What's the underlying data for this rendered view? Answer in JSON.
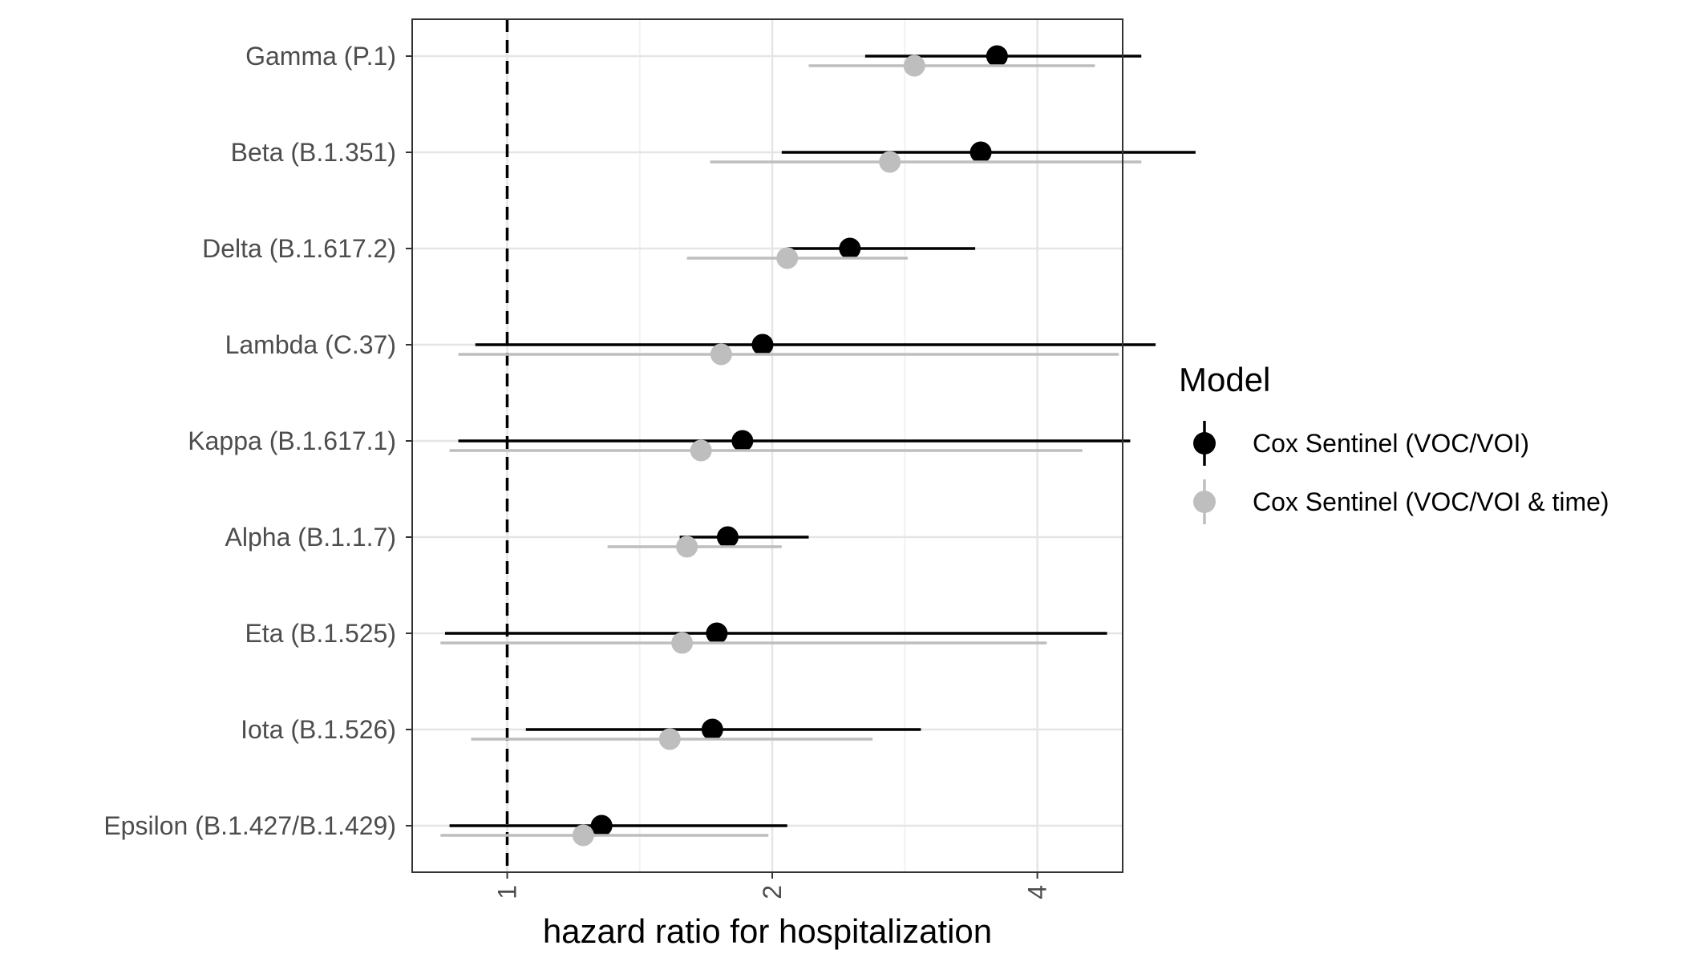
{
  "chart_data": {
    "type": "forest",
    "xlabel": "hazard ratio for hospitalization",
    "ylabel": "",
    "x_scale": "log2",
    "xlim": [
      0.78,
      5.0
    ],
    "x_ticks": [
      1,
      2,
      4
    ],
    "x_tick_labels": [
      "1",
      "2",
      "4"
    ],
    "x_tick_label_rotation": "vertical",
    "reference_line": {
      "x": 1,
      "style": "dashed"
    },
    "grid": true,
    "legend": {
      "title": "Model",
      "position": "right"
    },
    "categories": [
      "Gamma (P.1)",
      "Beta (B.1.351)",
      "Delta (B.1.617.2)",
      "Lambda (C.37)",
      "Kappa (B.1.617.1)",
      "Alpha (B.1.1.7)",
      "Eta (B.1.525)",
      "Iota (B.1.526)",
      "Epsilon (B.1.427/B.1.429)"
    ],
    "series": [
      {
        "name": "Cox Sentinel (VOC/VOI)",
        "color": "#000000",
        "estimate": [
          3.6,
          3.45,
          2.45,
          1.95,
          1.85,
          1.78,
          1.73,
          1.71,
          1.28
        ],
        "lower": [
          2.55,
          2.05,
          2.08,
          0.92,
          0.88,
          1.57,
          0.85,
          1.05,
          0.86
        ],
        "upper": [
          5.25,
          6.05,
          3.4,
          5.45,
          5.1,
          2.2,
          4.8,
          2.95,
          2.08
        ]
      },
      {
        "name": "Cox Sentinel (VOC/VOI & time)",
        "color": "#bebebe",
        "estimate": [
          2.9,
          2.72,
          2.08,
          1.75,
          1.66,
          1.6,
          1.58,
          1.53,
          1.22
        ],
        "lower": [
          2.2,
          1.7,
          1.6,
          0.88,
          0.86,
          1.3,
          0.84,
          0.91,
          0.84
        ],
        "upper": [
          4.65,
          5.25,
          2.85,
          4.95,
          4.5,
          2.05,
          4.1,
          2.6,
          1.98
        ]
      }
    ]
  }
}
